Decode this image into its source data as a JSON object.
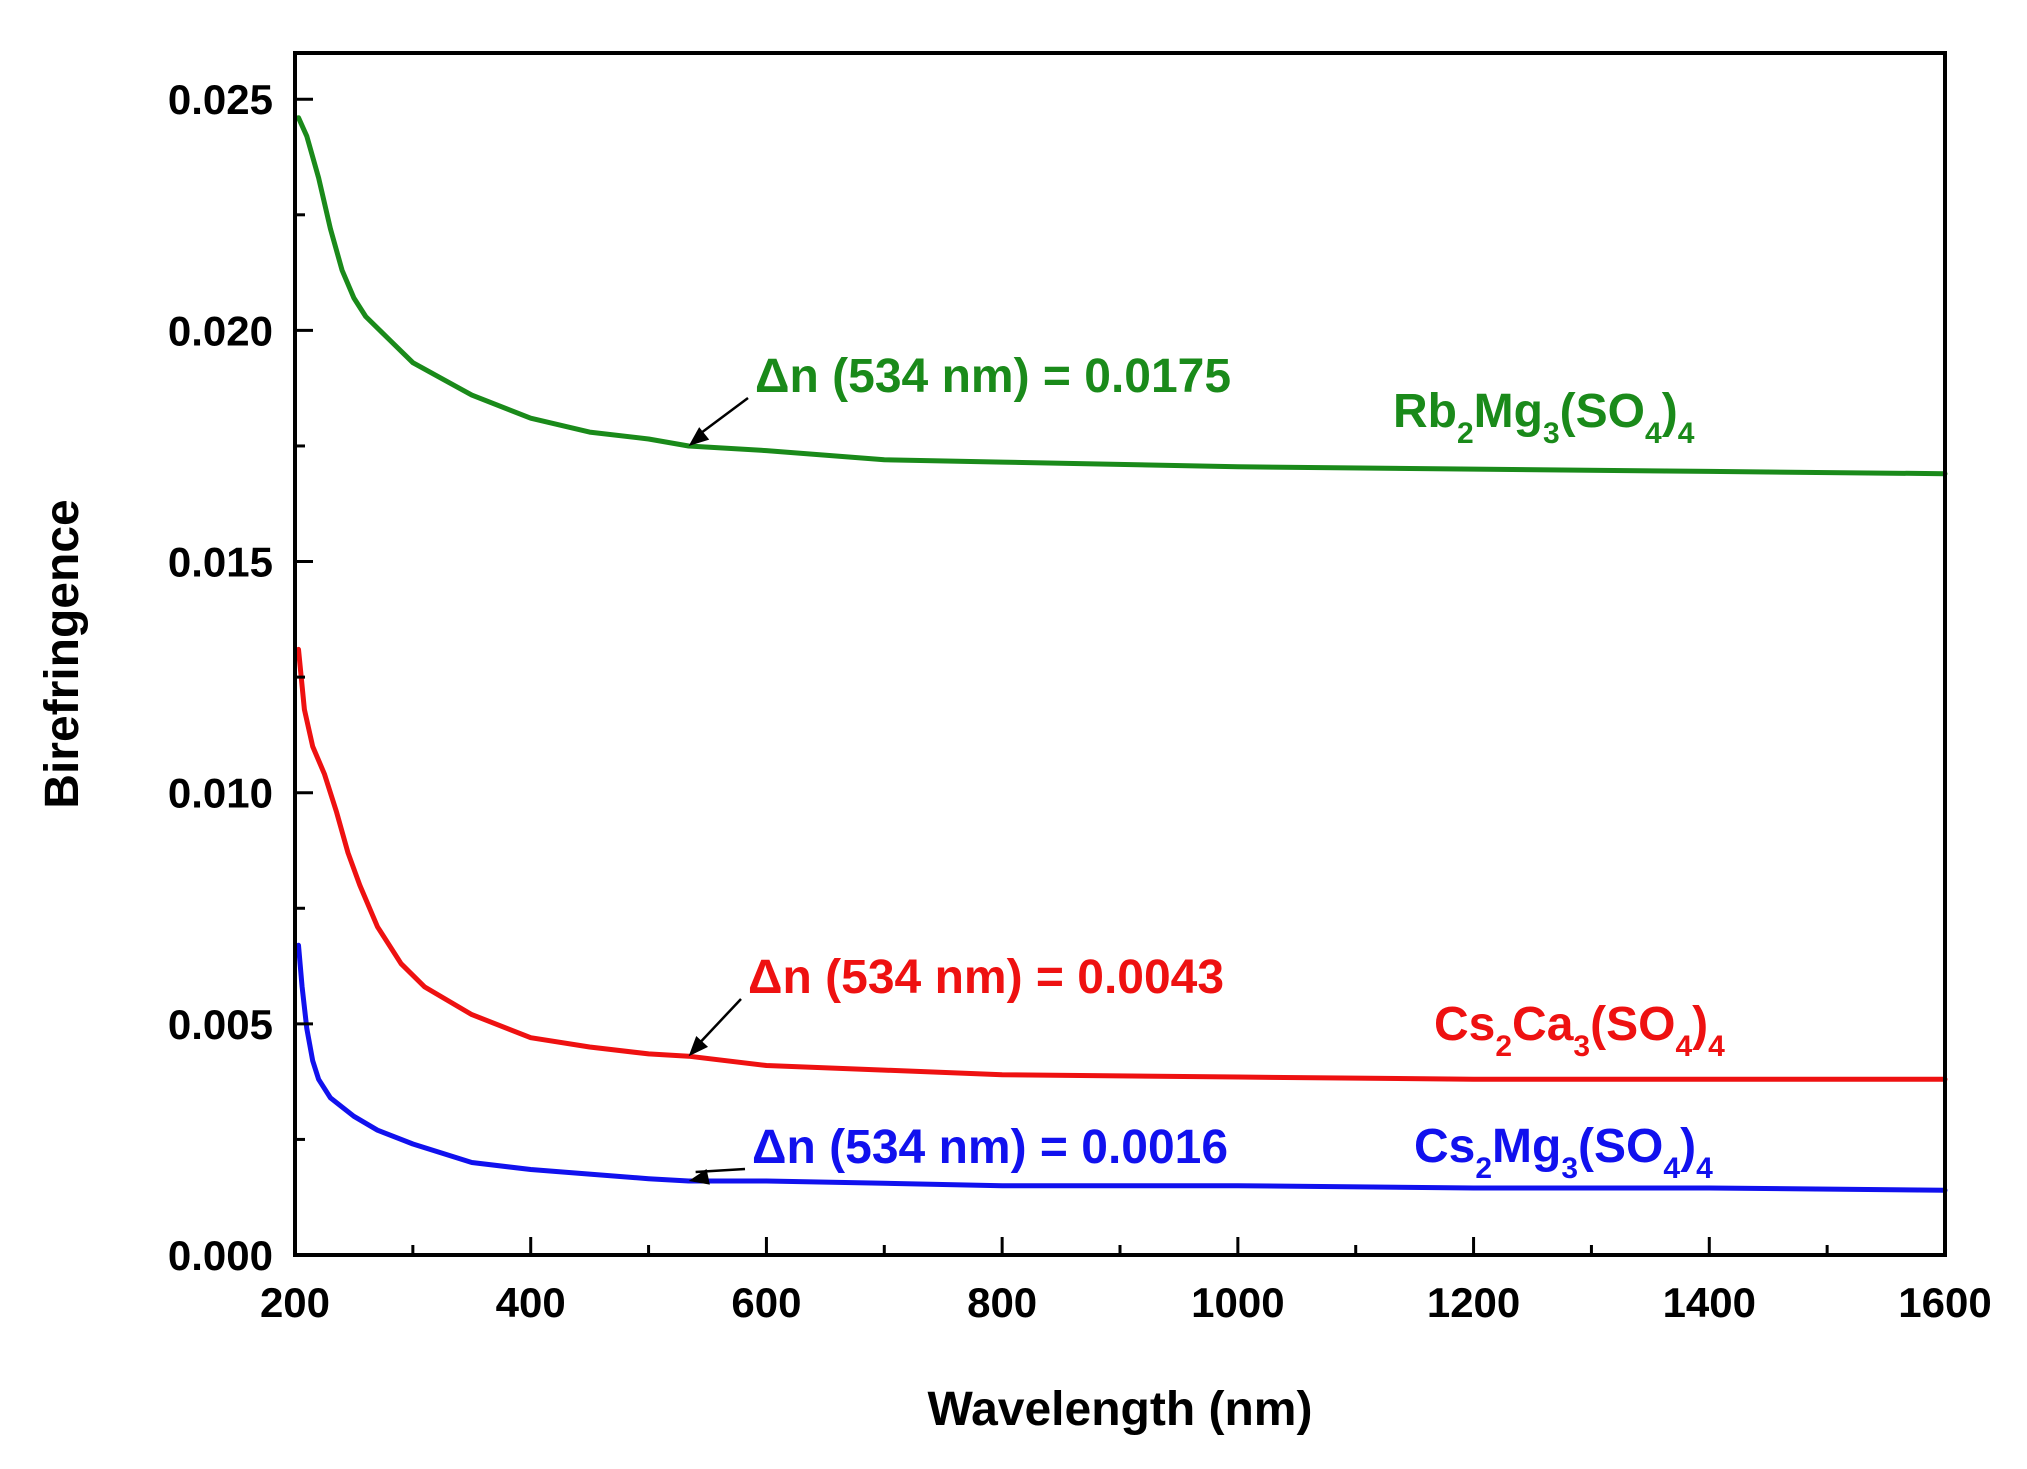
{
  "chart_data": {
    "type": "line",
    "title": "",
    "xlabel": "Wavelength (nm)",
    "ylabel": "Birefringence",
    "xlim": [
      200,
      1600
    ],
    "ylim": [
      0.0,
      0.026
    ],
    "xticks": [
      200,
      400,
      600,
      800,
      1000,
      1200,
      1400,
      1600
    ],
    "xtick_labels": [
      "200",
      "400",
      "600",
      "800",
      "1000",
      "1200",
      "1400",
      "1600"
    ],
    "yticks": [
      0.0,
      0.005,
      0.01,
      0.015,
      0.02,
      0.025
    ],
    "ytick_labels": [
      "0.000",
      "0.005",
      "0.010",
      "0.015",
      "0.020",
      "0.025"
    ],
    "grid": false,
    "series": [
      {
        "name": "Rb2Mg3(SO4)4",
        "label_parts": [
          "Rb",
          "2",
          "Mg",
          "3",
          "(SO",
          "4",
          ")",
          "4"
        ],
        "color": "#1a8a1a",
        "x": [
          203,
          210,
          220,
          230,
          240,
          250,
          260,
          280,
          300,
          350,
          400,
          450,
          500,
          534,
          600,
          700,
          800,
          1000,
          1200,
          1400,
          1600
        ],
        "y": [
          0.0246,
          0.0242,
          0.0233,
          0.0222,
          0.0213,
          0.0207,
          0.0203,
          0.0198,
          0.0193,
          0.0186,
          0.0181,
          0.0178,
          0.01765,
          0.0175,
          0.0174,
          0.0172,
          0.01715,
          0.01705,
          0.017,
          0.01695,
          0.0169
        ],
        "annotation": {
          "text": "Δn (534 nm) = 0.0175",
          "x": 534,
          "y": 0.0175
        }
      },
      {
        "name": "Cs2Ca3(SO4)4",
        "label_parts": [
          "Cs",
          "2",
          "Ca",
          "3",
          "(SO",
          "4",
          ")",
          "4"
        ],
        "color": "#ee1111",
        "x": [
          203,
          208,
          215,
          225,
          235,
          245,
          255,
          270,
          290,
          310,
          350,
          400,
          450,
          500,
          534,
          600,
          700,
          800,
          1000,
          1200,
          1400,
          1600
        ],
        "y": [
          0.0131,
          0.0118,
          0.011,
          0.0104,
          0.0096,
          0.0087,
          0.008,
          0.0071,
          0.0063,
          0.0058,
          0.0052,
          0.0047,
          0.0045,
          0.00435,
          0.0043,
          0.0041,
          0.004,
          0.0039,
          0.00385,
          0.0038,
          0.0038,
          0.0038
        ],
        "annotation": {
          "text": "Δn (534 nm) = 0.0043",
          "x": 534,
          "y": 0.0043
        }
      },
      {
        "name": "Cs2Mg3(SO4)4",
        "label_parts": [
          "Cs",
          "2",
          "Mg",
          "3",
          "(SO",
          "4",
          ")",
          "4"
        ],
        "color": "#1111ee",
        "x": [
          203,
          206,
          210,
          215,
          220,
          230,
          240,
          250,
          270,
          300,
          350,
          400,
          450,
          500,
          534,
          600,
          700,
          800,
          1000,
          1200,
          1400,
          1600
        ],
        "y": [
          0.0067,
          0.0058,
          0.0049,
          0.0042,
          0.0038,
          0.0034,
          0.0032,
          0.003,
          0.0027,
          0.0024,
          0.002,
          0.00185,
          0.00175,
          0.00165,
          0.0016,
          0.0016,
          0.00155,
          0.0015,
          0.0015,
          0.00145,
          0.00145,
          0.0014
        ],
        "annotation": {
          "text": "Δn (534 nm) = 0.0016",
          "x": 534,
          "y": 0.0016
        }
      }
    ]
  }
}
